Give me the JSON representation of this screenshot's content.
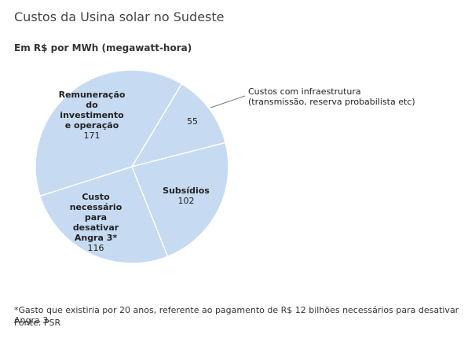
{
  "chart_data": {
    "type": "pie",
    "title": "Custos da Usina solar no Sudeste",
    "subtitle": "Em R$ por MWh (megawatt-hora)",
    "categories": [
      "Custos com infraestrutura (transmissão, reserva probabilista etc)",
      "Subsídios",
      "Custo necessário para desativar Angra 3*",
      "Remuneração do investimento e operação"
    ],
    "values": [
      55,
      102,
      116,
      171
    ],
    "color": "#c6daf2",
    "footnote": "*Gasto que existiria por 20 anos, referente ao pagamento de R$ 12 bilhões necessários para desativar Angra 3",
    "source": "Fonte: PSR"
  }
}
